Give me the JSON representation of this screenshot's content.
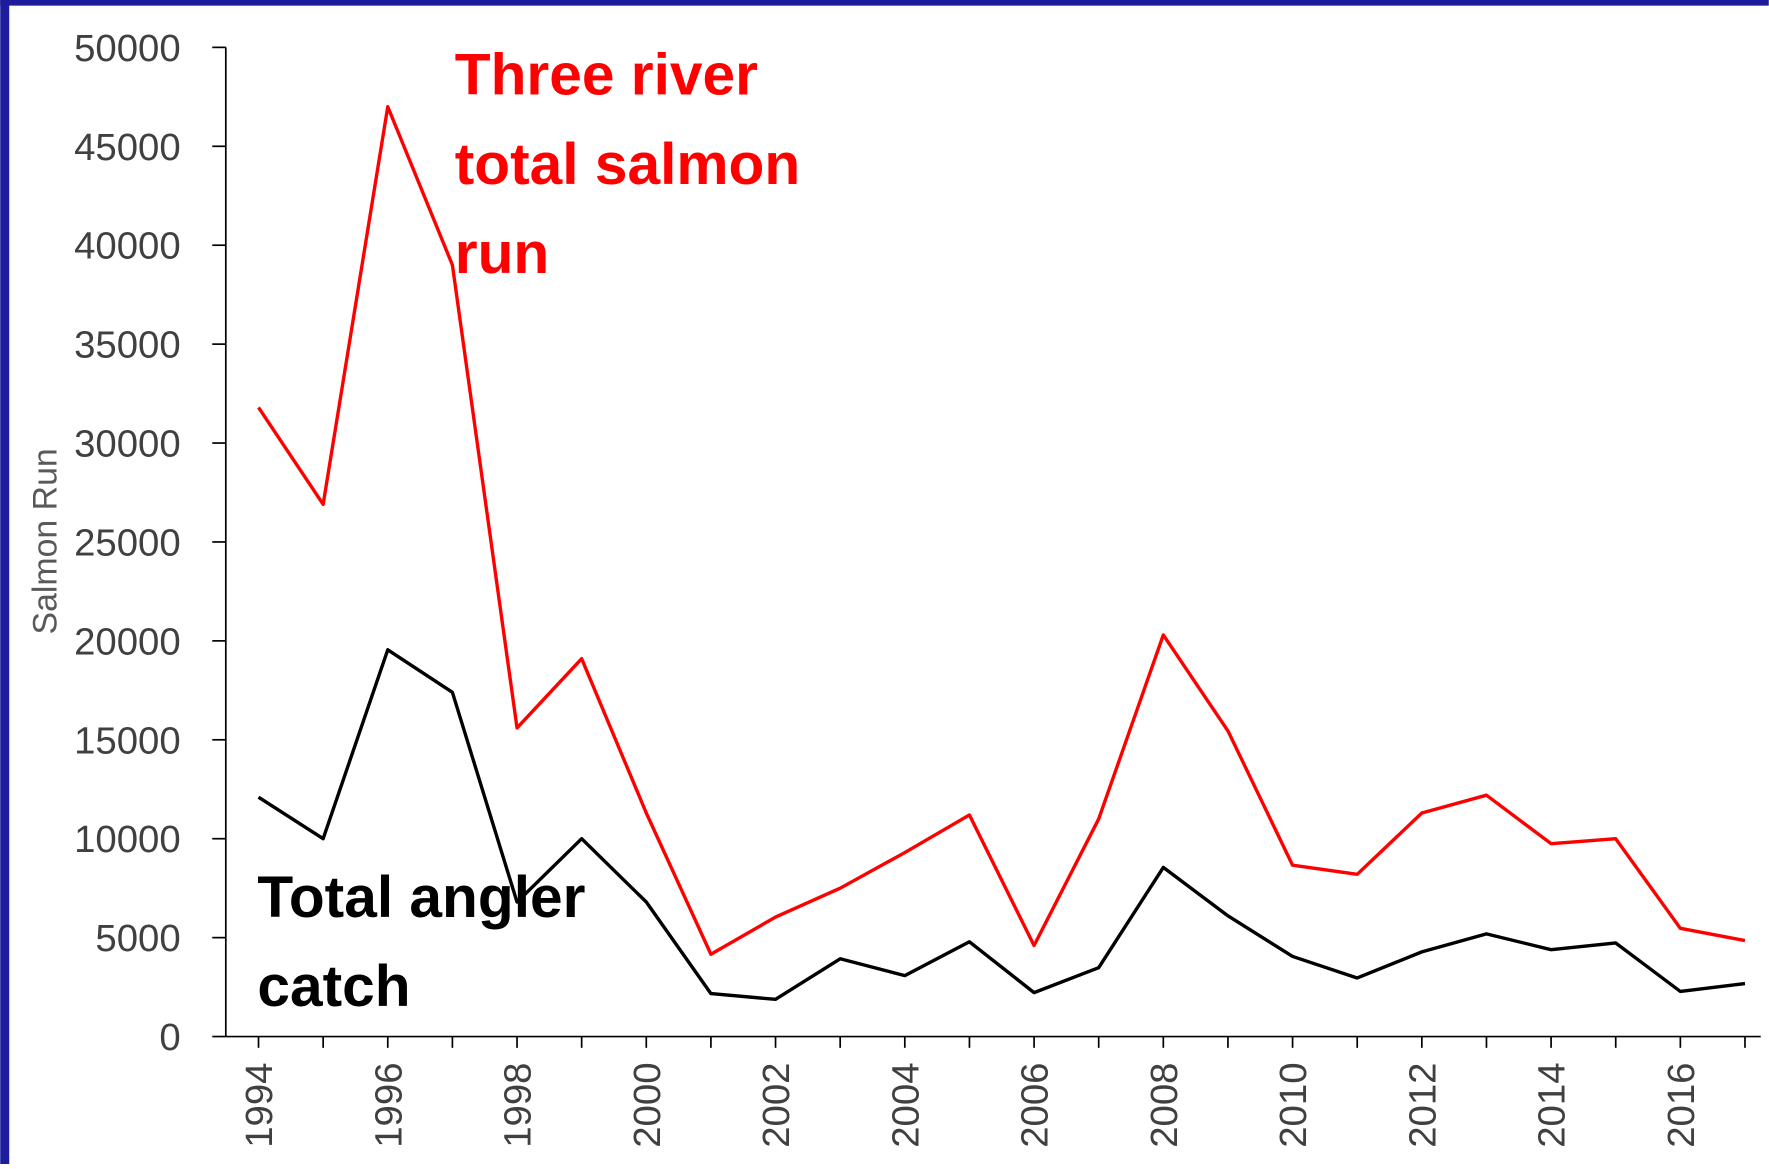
{
  "chart_data": {
    "type": "line",
    "ylabel": "Salmon Run",
    "categories": [
      "1994",
      null,
      "1996",
      null,
      "1998",
      null,
      "2000",
      null,
      "2002",
      null,
      "2004",
      null,
      "2006",
      null,
      "2008",
      null,
      "2010",
      null,
      "2012",
      null,
      "2014",
      null,
      "2016",
      null
    ],
    "series": [
      {
        "name": "Three river total salmon run",
        "color": "#ff0000",
        "values": [
          31800,
          26900,
          47000,
          39000,
          15600,
          19100,
          11300,
          4160,
          6040,
          7500,
          9300,
          11200,
          4600,
          11000,
          20300,
          15450,
          8660,
          8200,
          11300,
          12200,
          9750,
          10000,
          5470,
          4850
        ]
      },
      {
        "name": "Total angler catch",
        "color": "#000000",
        "values": [
          12100,
          10000,
          19550,
          17400,
          6800,
          10000,
          6800,
          2170,
          1880,
          3930,
          3080,
          4790,
          2220,
          3480,
          8550,
          6100,
          4050,
          2960,
          4280,
          5190,
          4390,
          4730,
          2280,
          2680
        ]
      }
    ],
    "ylim": [
      0,
      50000
    ],
    "yticks": [
      0,
      5000,
      10000,
      15000,
      20000,
      25000,
      30000,
      35000,
      40000,
      45000,
      50000
    ],
    "grid": false
  }
}
